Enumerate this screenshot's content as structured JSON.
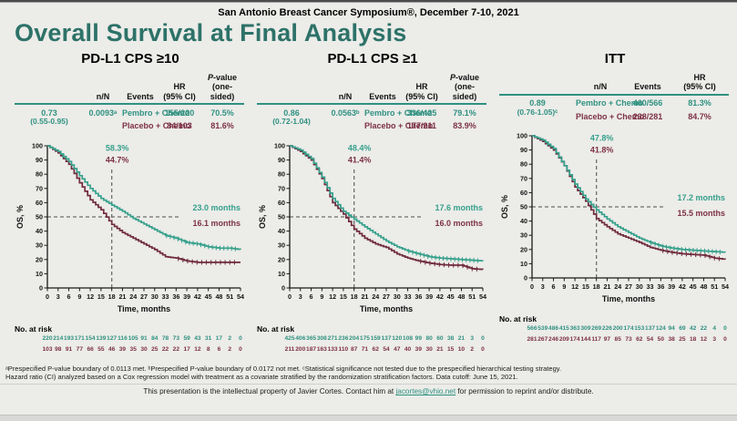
{
  "page": {
    "header": "San Antonio Breast Cancer Symposium®, December 7-10, 2021",
    "title": "Overall Survival at Final Analysis",
    "accent_title_teal": "#2d7268",
    "accent_teal": "#2f9180",
    "accent_maroon": "#7d3148",
    "background": "#ecece9"
  },
  "footnotes": {
    "line1": "ᵃPrespecified P-value boundary of 0.0113 met. ᵇPrespecified P-value boundary of 0.0172 not met. ᶜStatistical significance not tested due to the prespecified hierarchical testing strategy.",
    "line2": "Hazard ratio (CI) analyzed based on a Cox regression model with treatment as a covariate stratified by the randomization stratification factors. Data cutoff: June 15, 2021.",
    "property_pre": "This presentation is the intellectual property of Javier Cortes. Contact him at ",
    "property_link": "jacortes@vhio.net",
    "property_post": " for permission to reprint and/or distribute."
  },
  "chart_data": [
    {
      "type": "line",
      "id": "pdl1-cps10",
      "title": "PD-L1 CPS ≥10",
      "table": {
        "columns": [
          [
            "n/N"
          ],
          [
            "Events"
          ],
          [
            "HR",
            "(95% CI)"
          ],
          [
            "P-value",
            "(one-sided)"
          ]
        ],
        "rows": [
          {
            "label": "Pembro + Chemo",
            "nN": "155/220",
            "events": "70.5%"
          },
          {
            "label": "Placebo + Chemo",
            "nN": "84/103",
            "events": "81.6%"
          }
        ],
        "hr": "0.73",
        "hr_ci": "(0.55-0.95)",
        "p_value": "0.0093ᵃ"
      },
      "xlabel": "Time, months",
      "ylabel": "OS, %",
      "xlim": [
        0,
        54
      ],
      "ylim": [
        0,
        100
      ],
      "x_ticks": [
        0,
        3,
        6,
        9,
        12,
        15,
        18,
        21,
        24,
        27,
        30,
        33,
        36,
        39,
        42,
        45,
        48,
        51,
        54
      ],
      "y_ticks": [
        0,
        10,
        20,
        30,
        40,
        50,
        60,
        70,
        80,
        90,
        100
      ],
      "landmark_x": 18,
      "landmark_labels": {
        "pembro": "58.3%",
        "placebo": "44.7%"
      },
      "median_labels": {
        "pembro": "23.0 months",
        "placebo": "16.1 months"
      },
      "series": [
        {
          "name": "Pembro + Chemo",
          "color": "#35a08b",
          "x": [
            0,
            3,
            6,
            9,
            12,
            15,
            18,
            21,
            24,
            27,
            30,
            33,
            36,
            39,
            42,
            45,
            48,
            51,
            54
          ],
          "y": [
            100,
            96,
            89,
            79,
            70,
            63,
            58.3,
            54,
            49,
            45,
            41,
            37,
            35,
            32,
            31,
            29,
            28,
            28,
            27
          ]
        },
        {
          "name": "Placebo + Chemo",
          "color": "#6f2b3d",
          "x": [
            0,
            3,
            6,
            9,
            12,
            15,
            18,
            21,
            24,
            27,
            30,
            33,
            36,
            39,
            42,
            45,
            48,
            51,
            54
          ],
          "y": [
            100,
            95,
            87,
            74,
            62,
            55,
            44.7,
            39,
            35,
            31,
            27,
            22,
            21,
            19,
            18,
            18,
            18,
            18,
            18
          ]
        }
      ],
      "at_risk": {
        "heading": "No. at risk",
        "rows": [
          [
            220,
            214,
            193,
            171,
            154,
            139,
            127,
            116,
            105,
            91,
            84,
            78,
            73,
            59,
            43,
            31,
            17,
            2,
            0
          ],
          [
            103,
            98,
            91,
            77,
            66,
            55,
            46,
            39,
            35,
            30,
            25,
            22,
            22,
            17,
            12,
            8,
            6,
            2,
            0
          ]
        ]
      }
    },
    {
      "type": "line",
      "id": "pdl1-cps1",
      "title": "PD-L1 CPS ≥1",
      "table": {
        "columns": [
          [
            "n/N"
          ],
          [
            "Events"
          ],
          [
            "HR",
            "(95% CI)"
          ],
          [
            "P-value",
            "(one-sided)"
          ]
        ],
        "rows": [
          {
            "label": "Pembro + Chemo",
            "nN": "336/425",
            "events": "79.1%"
          },
          {
            "label": "Placebo + Chemo",
            "nN": "177/211",
            "events": "83.9%"
          }
        ],
        "hr": "0.86",
        "hr_ci": "(0.72-1.04)",
        "p_value": "0.0563ᵇ"
      },
      "xlabel": "Time, months",
      "ylabel": "OS, %",
      "xlim": [
        0,
        54
      ],
      "ylim": [
        0,
        100
      ],
      "x_ticks": [
        0,
        3,
        6,
        9,
        12,
        15,
        18,
        21,
        24,
        27,
        30,
        33,
        36,
        39,
        42,
        45,
        48,
        51,
        54
      ],
      "y_ticks": [
        0,
        10,
        20,
        30,
        40,
        50,
        60,
        70,
        80,
        90,
        100
      ],
      "landmark_x": 18,
      "landmark_labels": {
        "pembro": "48.4%",
        "placebo": "41.4%"
      },
      "median_labels": {
        "pembro": "17.6 months",
        "placebo": "16.0 months"
      },
      "series": [
        {
          "name": "Pembro + Chemo",
          "color": "#35a08b",
          "x": [
            0,
            3,
            6,
            9,
            12,
            15,
            18,
            21,
            24,
            27,
            30,
            33,
            36,
            39,
            42,
            45,
            48,
            51,
            54
          ],
          "y": [
            100,
            97,
            91,
            78,
            63,
            54,
            48.4,
            43,
            38,
            33,
            29,
            26,
            24,
            22,
            21,
            20.5,
            20,
            19.5,
            19
          ]
        },
        {
          "name": "Placebo + Chemo",
          "color": "#6f2b3d",
          "x": [
            0,
            3,
            6,
            9,
            12,
            15,
            18,
            21,
            24,
            27,
            30,
            33,
            36,
            39,
            42,
            45,
            48,
            51,
            54
          ],
          "y": [
            100,
            96,
            90,
            77,
            60,
            52,
            41.4,
            35,
            31,
            28.5,
            24,
            21,
            19,
            17.5,
            16.5,
            16,
            16,
            13.5,
            13
          ]
        }
      ],
      "at_risk": {
        "heading": "No. at risk",
        "rows": [
          [
            425,
            406,
            365,
            308,
            271,
            236,
            204,
            175,
            159,
            137,
            120,
            108,
            99,
            80,
            60,
            38,
            21,
            3,
            0
          ],
          [
            211,
            200,
            187,
            163,
            133,
            110,
            87,
            71,
            62,
            54,
            47,
            40,
            39,
            30,
            21,
            15,
            10,
            2,
            0
          ]
        ]
      }
    },
    {
      "type": "line",
      "id": "itt",
      "title": "ITT",
      "table": {
        "columns": [
          [
            "n/N"
          ],
          [
            "Events"
          ],
          [
            "HR",
            "(95% CI)"
          ]
        ],
        "rows": [
          {
            "label": "Pembro + Chemo",
            "nN": "460/566",
            "events": "81.3%"
          },
          {
            "label": "Placebo + Chemo",
            "nN": "238/281",
            "events": "84.7%"
          }
        ],
        "hr": "0.89",
        "hr_ci": "(0.76-1.05)ᶜ"
      },
      "xlabel": "Time, months",
      "ylabel": "OS, %",
      "xlim": [
        0,
        54
      ],
      "ylim": [
        0,
        100
      ],
      "x_ticks": [
        0,
        3,
        6,
        9,
        12,
        15,
        18,
        21,
        24,
        27,
        30,
        33,
        36,
        39,
        42,
        45,
        48,
        51,
        54
      ],
      "y_ticks": [
        0,
        10,
        20,
        30,
        40,
        50,
        60,
        70,
        80,
        90,
        100
      ],
      "landmark_x": 18,
      "landmark_labels": {
        "pembro": "47.8%",
        "placebo": "41.8%"
      },
      "median_labels": {
        "pembro": "17.2 months",
        "placebo": "15.5 months"
      },
      "series": [
        {
          "name": "Pembro + Chemo",
          "color": "#35a08b",
          "x": [
            0,
            3,
            6,
            9,
            12,
            15,
            18,
            21,
            24,
            27,
            30,
            33,
            36,
            39,
            42,
            45,
            48,
            51,
            54
          ],
          "y": [
            100,
            97,
            91,
            79,
            66,
            55.5,
            47.8,
            41.5,
            36,
            32,
            28,
            25,
            22.5,
            21,
            20,
            19.5,
            19,
            18.5,
            18
          ]
        },
        {
          "name": "Placebo + Chemo",
          "color": "#6f2b3d",
          "x": [
            0,
            3,
            6,
            9,
            12,
            15,
            18,
            21,
            24,
            27,
            30,
            33,
            36,
            39,
            42,
            45,
            48,
            51,
            54
          ],
          "y": [
            100,
            96,
            90,
            79,
            64,
            54,
            41.8,
            36,
            31,
            28,
            25,
            21.5,
            19.5,
            18,
            17,
            16.5,
            16,
            14,
            13
          ]
        }
      ],
      "at_risk": {
        "heading": "No. at risk",
        "rows": [
          [
            566,
            539,
            486,
            415,
            363,
            309,
            269,
            226,
            200,
            174,
            153,
            137,
            124,
            94,
            69,
            42,
            22,
            4,
            0
          ],
          [
            281,
            267,
            246,
            209,
            174,
            144,
            117,
            97,
            85,
            73,
            62,
            54,
            50,
            38,
            25,
            18,
            12,
            3,
            0
          ]
        ]
      }
    }
  ]
}
